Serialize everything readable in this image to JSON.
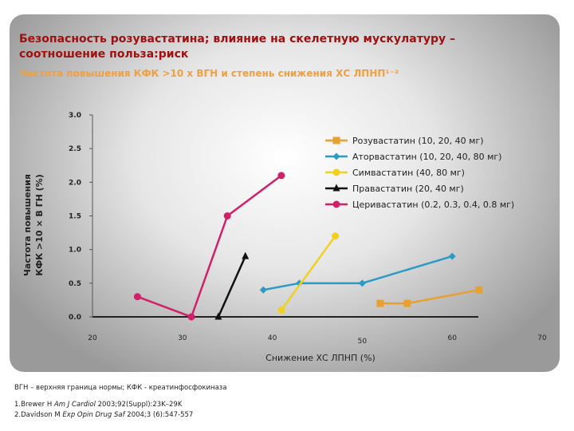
{
  "slide": {
    "title": "Безопасность розувастатина; влияние на скелетную мускулатуру – соотношение польза:риск",
    "subtitle": "Частота повышения КФК >10 x ВГН и степень снижения ХС ЛПНП¹⁻²"
  },
  "footer": {
    "definitions": "ВГН – верхняя граница нормы; КФК - креатинфосфокиназа",
    "refs": [
      {
        "num": "1.",
        "authors": "Brewer H ",
        "journal": "Am J Cardiol",
        "details": " 2003;92(Suppl):23K–29K"
      },
      {
        "num": "2.",
        "authors": "Davidson M ",
        "journal": "Exp Opin Drug Saf",
        "details": " 2004;3 (6):547-557"
      }
    ]
  },
  "chart_data": {
    "type": "line",
    "xlabel": "Снижение ХС ЛПНП (%)",
    "ylabel_lines": [
      "Частота повышения",
      "КФК >10 × В ГН (%)"
    ],
    "xlim": [
      20,
      70
    ],
    "ylim": [
      0,
      3
    ],
    "x_ticks": [
      20,
      30,
      40,
      50,
      60,
      70
    ],
    "y_ticks": [
      "0.0",
      "0.5",
      "1.0",
      "1.5",
      "2.0",
      "2.5",
      "3.0"
    ],
    "legend_position": "right",
    "series": [
      {
        "name": "Розувастатин (10, 20, 40 мг)",
        "color": "#e8a030",
        "marker": "square",
        "points": [
          [
            52,
            0.2
          ],
          [
            55,
            0.2
          ],
          [
            63,
            0.4
          ]
        ]
      },
      {
        "name": "Аторвастатин (10, 20, 40, 80 мг)",
        "color": "#2b9ac4",
        "marker": "diamond",
        "points": [
          [
            39,
            0.4
          ],
          [
            43,
            0.5
          ],
          [
            50,
            0.5
          ],
          [
            60,
            0.9
          ]
        ]
      },
      {
        "name": "Симвастатин (40, 80 мг)",
        "color": "#f0d020",
        "marker": "circle",
        "points": [
          [
            41,
            0.1
          ],
          [
            47,
            1.2
          ]
        ]
      },
      {
        "name": "Правастатин (20, 40 мг)",
        "color": "#111111",
        "marker": "triangle",
        "points": [
          [
            34,
            0.0
          ],
          [
            37,
            0.9
          ]
        ]
      },
      {
        "name": "Церивастатин (0.2, 0.3, 0.4, 0.8 мг)",
        "color": "#d0206a",
        "marker": "circle",
        "points": [
          [
            25,
            0.3
          ],
          [
            31,
            0.0
          ],
          [
            35,
            1.5
          ],
          [
            41,
            2.1
          ]
        ]
      }
    ]
  }
}
